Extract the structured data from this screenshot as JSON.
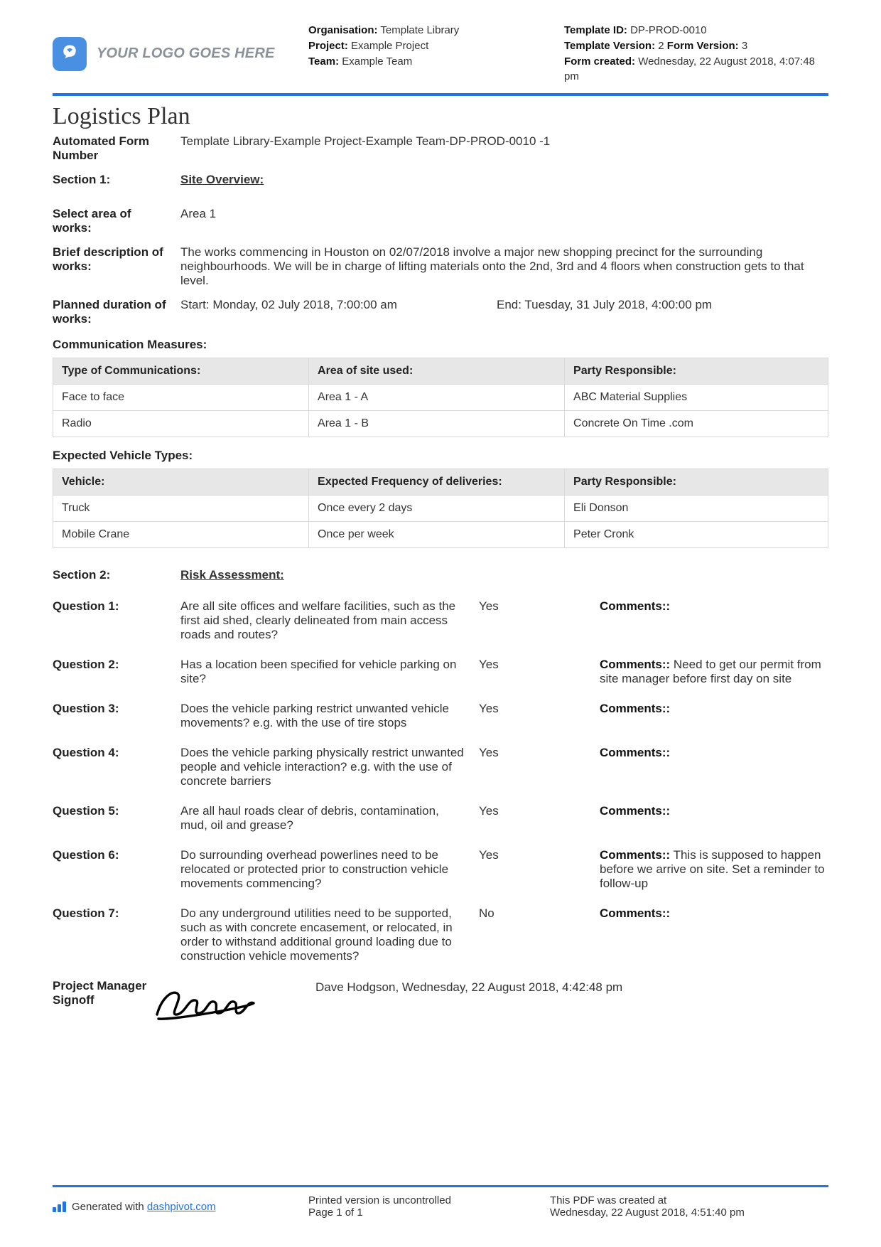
{
  "header": {
    "logo_text": "YOUR LOGO GOES HERE",
    "mid": {
      "org_label": "Organisation:",
      "org_value": "Template Library",
      "project_label": "Project:",
      "project_value": "Example Project",
      "team_label": "Team:",
      "team_value": "Example Team"
    },
    "right": {
      "tid_label": "Template ID:",
      "tid_value": "DP-PROD-0010",
      "tv_label": "Template Version:",
      "tv_value": "2",
      "fv_label": "Form Version:",
      "fv_value": "3",
      "created_label": "Form created:",
      "created_value": "Wednesday, 22 August 2018, 4:07:48 pm"
    }
  },
  "title": "Logistics Plan",
  "form_number": {
    "label": "Automated Form Number",
    "value": "Template Library-Example Project-Example Team-DP-PROD-0010   -1"
  },
  "section1": {
    "label": "Section 1:",
    "name": "Site Overview:",
    "area": {
      "label": "Select area of works:",
      "value": "Area 1"
    },
    "desc": {
      "label": "Brief description of works:",
      "value": "The works commencing in Houston on 02/07/2018 involve a major new shopping precinct for the surrounding neighbourhoods. We will be in charge of lifting materials onto the 2nd, 3rd and 4 floors when construction gets to that level."
    },
    "duration": {
      "label": "Planned duration of works:",
      "start": "Start: Monday, 02 July 2018, 7:00:00 am",
      "end": "End: Tuesday, 31 July 2018, 4:00:00 pm"
    }
  },
  "comm": {
    "heading": "Communication Measures:",
    "columns": [
      "Type of Communications:",
      "Area of site used:",
      "Party Responsible:"
    ],
    "rows": [
      [
        "Face to face",
        "Area 1 - A",
        "ABC Material Supplies"
      ],
      [
        "Radio",
        "Area 1 - B",
        "Concrete On Time .com"
      ]
    ],
    "col_widths": [
      "33%",
      "33%",
      "34%"
    ]
  },
  "vehicles": {
    "heading": "Expected Vehicle Types:",
    "columns": [
      "Vehicle:",
      "Expected Frequency of deliveries:",
      "Party Responsible:"
    ],
    "rows": [
      [
        "Truck",
        "Once every 2 days",
        "Eli Donson"
      ],
      [
        "Mobile Crane",
        "Once per week",
        "Peter Cronk"
      ]
    ],
    "col_widths": [
      "33%",
      "33%",
      "34%"
    ]
  },
  "section2": {
    "label": "Section 2:",
    "name": "Risk Assessment:"
  },
  "comments_label": "Comments::",
  "questions": [
    {
      "label": "Question 1:",
      "text": "Are all site offices and welfare facilities, such as the first aid shed, clearly delineated from main access roads and routes?",
      "answer": "Yes",
      "comment": ""
    },
    {
      "label": "Question 2:",
      "text": "Has a location been specified for vehicle parking on site?",
      "answer": "Yes",
      "comment": "Need to get our permit from site manager before first day on site"
    },
    {
      "label": "Question 3:",
      "text": "Does the vehicle parking restrict unwanted vehicle movements? e.g. with the use of tire stops",
      "answer": "Yes",
      "comment": ""
    },
    {
      "label": "Question 4:",
      "text": "Does the vehicle parking physically restrict unwanted people and vehicle interaction? e.g. with the use of concrete barriers",
      "answer": "Yes",
      "comment": ""
    },
    {
      "label": "Question 5:",
      "text": "Are all haul roads clear of debris, contamination, mud, oil and grease?",
      "answer": "Yes",
      "comment": ""
    },
    {
      "label": "Question 6:",
      "text": "Do surrounding overhead powerlines need to be relocated or protected prior to construction vehicle movements commencing?",
      "answer": "Yes",
      "comment": "This is supposed to happen before we arrive on site. Set a reminder to follow-up"
    },
    {
      "label": "Question 7:",
      "text": "Do any underground utilities need to be supported, such as with concrete encasement, or relocated, in order to withstand additional ground loading due to construction vehicle movements?",
      "answer": "No",
      "comment": ""
    }
  ],
  "signoff": {
    "label": "Project Manager Signoff",
    "text": "Dave Hodgson, Wednesday, 22 August 2018, 4:42:48 pm"
  },
  "footer": {
    "generated_prefix": "Generated with ",
    "generated_link": "dashpivot.com",
    "mid_line1": "Printed version is uncontrolled",
    "mid_line2": "Page 1 of 1",
    "right_line1": "This PDF was created at",
    "right_line2": "Wednesday, 22 August 2018, 4:51:40 pm"
  },
  "colors": {
    "accent": "#2274e6",
    "border": "#d8d8d8",
    "th_bg": "#e7e7e7",
    "text": "#333333",
    "logo_bg": "#4a90e2",
    "logo_text": "#8b9199"
  }
}
